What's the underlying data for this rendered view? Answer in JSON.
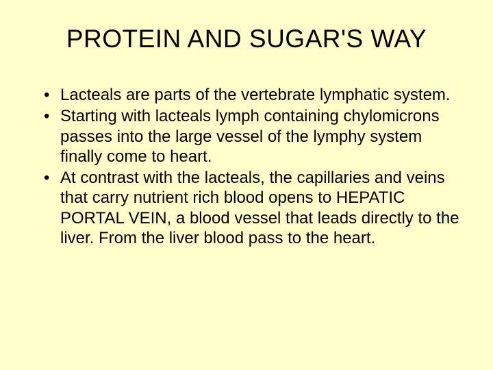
{
  "slide": {
    "background_color": "#ffffcc",
    "text_color": "#000000",
    "title": "PROTEIN AND SUGAR'S WAY",
    "title_fontsize": 37,
    "body_fontsize": 24,
    "body_lineheight": 1.22,
    "bullets": [
      "Lacteals are parts of the vertebrate lymphatic system.",
      "Starting with lacteals lymph containing chylomicrons passes into the large vessel of the lymphy system finally come to heart.",
      "At contrast with the lacteals, the capillaries and veins that carry nutrient rich blood opens to HEPATIC PORTAL VEIN, a blood vessel that leads directly to the liver. From the liver blood pass to the heart."
    ]
  }
}
